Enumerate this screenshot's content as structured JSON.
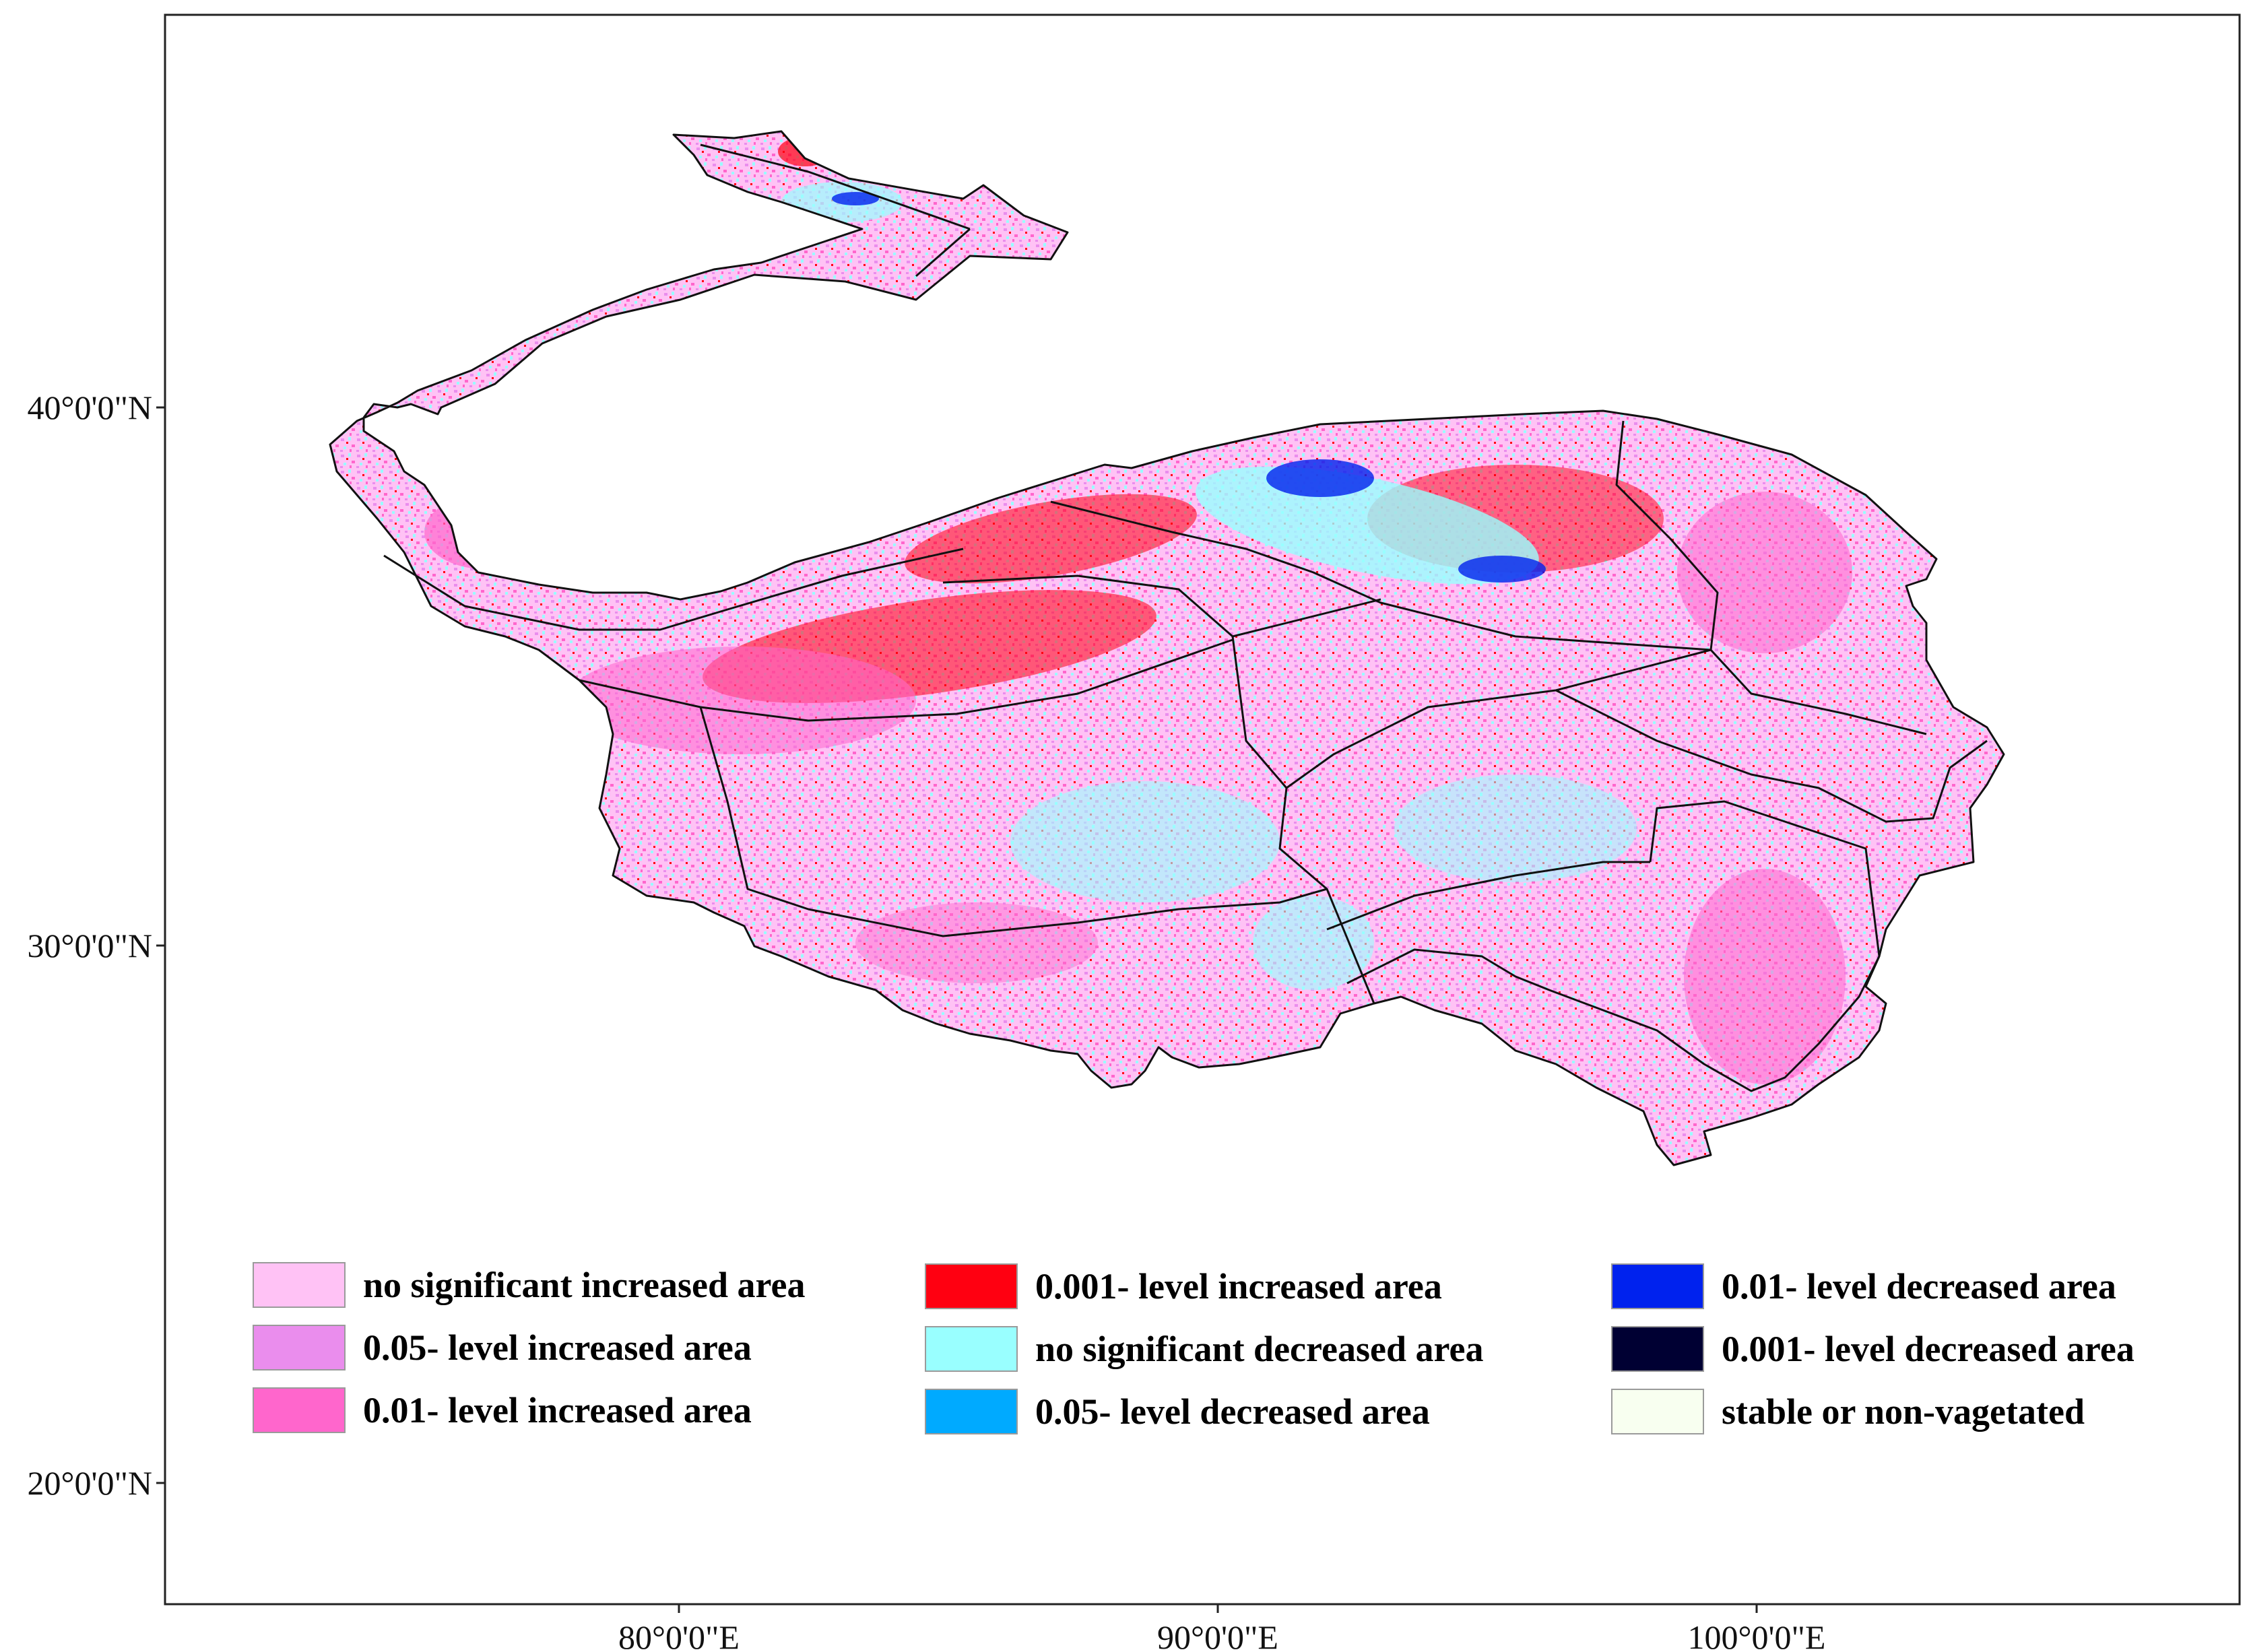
{
  "axes": {
    "lat_labels": [
      "40°0'0\"N",
      "30°0'0\"N",
      "20°0'0\"N"
    ],
    "lon_labels": [
      "80°0'0\"E",
      "90°0'0\"E",
      "100°0'0\"E"
    ]
  },
  "legend": {
    "items": [
      {
        "label": "no significant increased area",
        "color": "#ffc2f5"
      },
      {
        "label": "0.05- level increased area",
        "color": "#ea8ded"
      },
      {
        "label": "0.01- level increased area",
        "color": "#ff66cc"
      },
      {
        "label": "0.001- level increased area",
        "color": "#ff0011"
      },
      {
        "label": "no significant decreased area",
        "color": "#99ffff"
      },
      {
        "label": "0.05- level decreased area",
        "color": "#00aaff"
      },
      {
        "label": "0.01- level decreased area",
        "color": "#0022ee"
      },
      {
        "label": "0.001- level decreased area",
        "color": "#000033"
      },
      {
        "label": "stable or non-vagetated",
        "color": "#f8fff0"
      }
    ]
  }
}
